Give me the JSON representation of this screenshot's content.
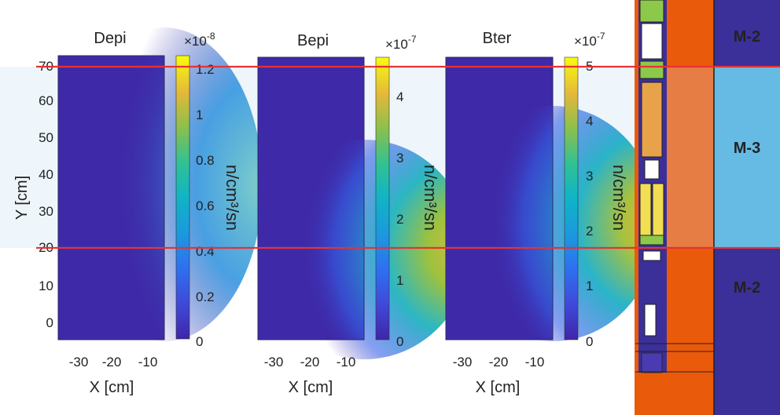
{
  "chart_data": [
    {
      "type": "heatmap",
      "title": "Depi",
      "xlabel": "X [cm]",
      "ylabel": "Y [cm]",
      "xlim": [
        -36,
        -3
      ],
      "ylim": [
        -4,
        73
      ],
      "xticks": [
        -30,
        -20,
        -10
      ],
      "yticks": [
        0,
        10,
        20,
        30,
        40,
        50,
        60,
        70
      ],
      "colorbar": {
        "label": "n/cm³/sn",
        "multiplier": "×10",
        "exponent": "-8",
        "ticks": [
          0,
          0.2,
          0.4,
          0.6,
          0.8,
          1,
          1.2
        ],
        "range": [
          0,
          1.25
        ]
      },
      "peak": {
        "x": -5,
        "y": 40,
        "value": 0.75
      }
    },
    {
      "type": "heatmap",
      "title": "Bepi",
      "xlabel": "X [cm]",
      "ylabel": "",
      "xlim": [
        -36,
        -3
      ],
      "ylim": [
        -4,
        73
      ],
      "xticks": [
        -30,
        -20,
        -10
      ],
      "colorbar": {
        "label": "n/cm³/sn",
        "multiplier": "×10",
        "exponent": "-7",
        "ticks": [
          0,
          1,
          2,
          3,
          4
        ],
        "range": [
          0,
          4.6
        ]
      },
      "peak": {
        "x": -4,
        "y": 20,
        "value": 3.3
      }
    },
    {
      "type": "heatmap",
      "title": "Bter",
      "xlabel": "X [cm]",
      "ylabel": "",
      "xlim": [
        -36,
        -3
      ],
      "ylim": [
        -4,
        73
      ],
      "xticks": [
        -30,
        -20,
        -10
      ],
      "colorbar": {
        "label": "n/cm³/sn",
        "multiplier": "×10",
        "exponent": "-7",
        "ticks": [
          0,
          1,
          2,
          3,
          4,
          5
        ],
        "range": [
          0,
          5.1
        ]
      },
      "peak": {
        "x": -6,
        "y": 27,
        "value": 4.0
      }
    }
  ],
  "reference_lines": {
    "y_values": [
      69,
      20
    ],
    "color": "#e53333"
  },
  "zones": [
    {
      "label": "M-2",
      "color": "#3b2f99"
    },
    {
      "label": "M-3",
      "color": "#66bbe4"
    },
    {
      "label": "M-2",
      "color": "#3b2f99"
    }
  ],
  "colors": {
    "low": "#3e26a8",
    "high": "#f9fb0e",
    "wall": "#ea5a0b",
    "wall_light": "#e67d45"
  }
}
